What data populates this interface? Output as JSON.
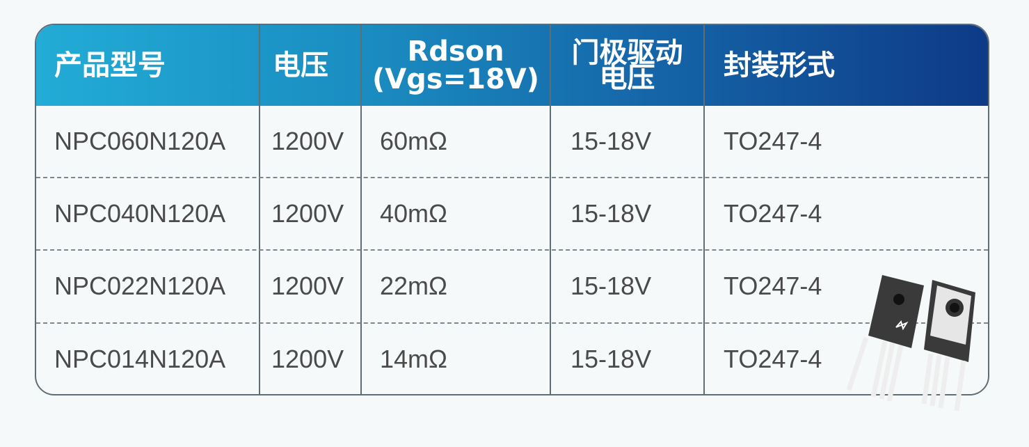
{
  "colors": {
    "header_start": "#22acd6",
    "header_end": "#0e3a87",
    "border": "#5f6e75",
    "text": "#4a4a4a"
  },
  "headers": [
    {
      "lines": [
        "产品型号"
      ]
    },
    {
      "lines": [
        "电压"
      ]
    },
    {
      "lines": [
        "Rdson",
        "(Vgs=18V)"
      ]
    },
    {
      "lines": [
        "门极驱动",
        "电压"
      ]
    },
    {
      "lines": [
        "封装形式"
      ]
    }
  ],
  "rows": [
    {
      "model": "NPC060N120A",
      "voltage": "1200V",
      "rdson": "60mΩ",
      "gate": "15-18V",
      "package": "TO247-4"
    },
    {
      "model": "NPC040N120A",
      "voltage": "1200V",
      "rdson": "40mΩ",
      "gate": "15-18V",
      "package": "TO247-4"
    },
    {
      "model": "NPC022N120A",
      "voltage": "1200V",
      "rdson": "22mΩ",
      "gate": "15-18V",
      "package": "TO247-4"
    },
    {
      "model": "NPC014N120A",
      "voltage": "1200V",
      "rdson": "14mΩ",
      "gate": "15-18V",
      "package": "TO247-4"
    }
  ]
}
